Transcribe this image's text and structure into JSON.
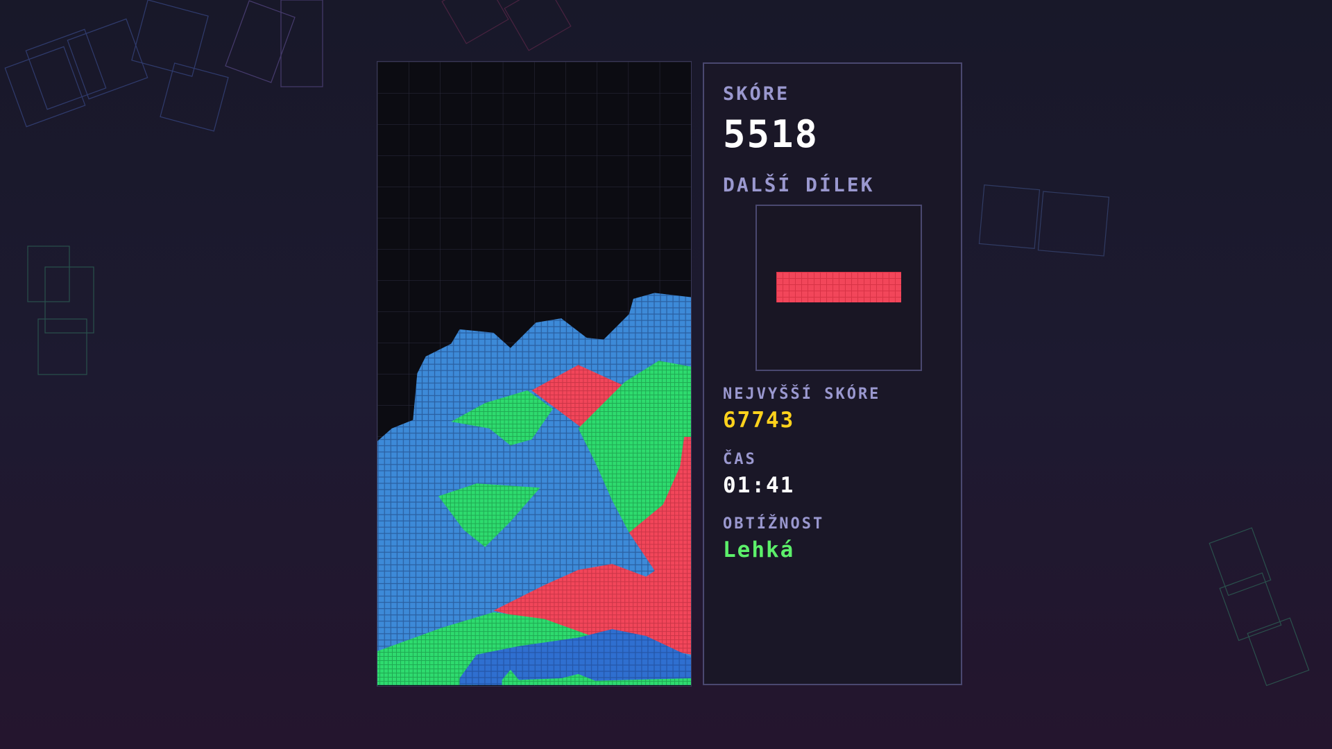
{
  "panel": {
    "score_label": "SKÓRE",
    "score_value": "5518",
    "next_piece_label": "DALŠÍ DÍLEK",
    "next_piece": {
      "shape": "I-horizontal",
      "color": "#f2465a"
    },
    "high_score_label": "NEJVYŠŠÍ SKÓRE",
    "high_score_value": "67743",
    "time_label": "ČAS",
    "time_value": "01:41",
    "difficulty_label": "OBTÍŽNOST",
    "difficulty_value": "Lehká"
  },
  "board": {
    "columns": 10,
    "rows": 20
  },
  "colors": {
    "blue": "#3d8ad8",
    "dark_blue": "#2f6fd0",
    "green": "#2edb6e",
    "red": "#f2465a",
    "high_score": "#ffd21c",
    "difficulty": "#5cf06a",
    "label": "#9a98cf"
  }
}
